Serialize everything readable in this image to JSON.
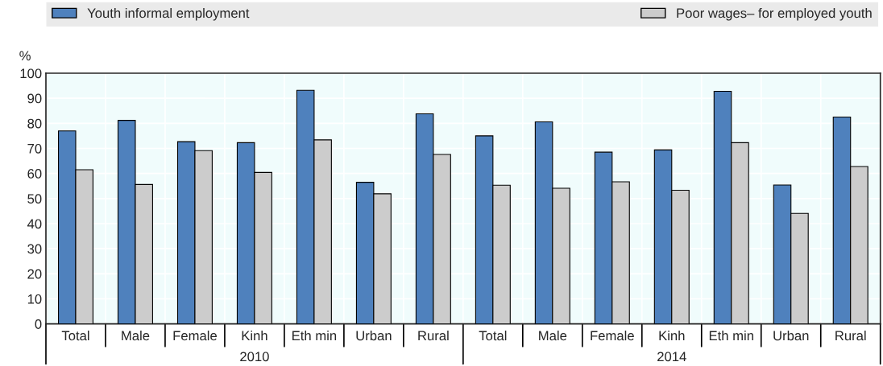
{
  "chart_data": {
    "type": "bar",
    "ylabel": "%",
    "categories": [
      "Total",
      "Male",
      "Female",
      "Kinh",
      "Eth min",
      "Urban",
      "Rural",
      "Total",
      "Male",
      "Female",
      "Kinh",
      "Eth min",
      "Urban",
      "Rural"
    ],
    "series": [
      {
        "name": "Youth informal employment",
        "color": "#4f81bd",
        "values": [
          77.0,
          81.2,
          72.7,
          72.3,
          93.2,
          56.5,
          83.8,
          75.0,
          80.6,
          68.5,
          69.4,
          92.8,
          55.4,
          82.5
        ]
      },
      {
        "name": "Poor wages– for employed youth",
        "color": "#cccccc",
        "values": [
          61.5,
          55.6,
          69.1,
          60.4,
          73.4,
          51.9,
          67.6,
          55.3,
          54.1,
          56.7,
          53.3,
          72.3,
          44.1,
          62.8
        ]
      }
    ],
    "annotations": [
      "2010",
      "2014"
    ],
    "ylim": [
      0,
      100
    ],
    "yticks": [
      0,
      10,
      20,
      30,
      40,
      50,
      60,
      70,
      80,
      90,
      100
    ],
    "grid": true,
    "legend": "top"
  }
}
